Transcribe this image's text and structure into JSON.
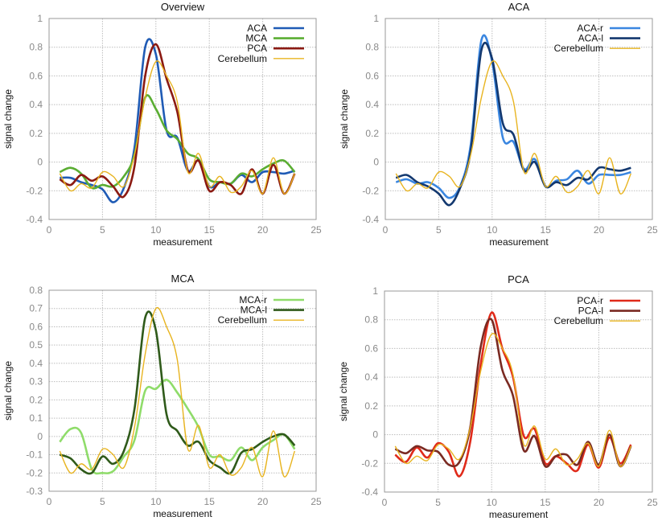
{
  "chart_data": [
    {
      "type": "line",
      "title": "Overview",
      "xlabel": "measurement",
      "ylabel": "signal change",
      "xlim": [
        0,
        25
      ],
      "ylim": [
        -0.4,
        1
      ],
      "xticks": [
        0,
        5,
        10,
        15,
        20,
        25
      ],
      "yticks": [
        "-0.4",
        "-0.2",
        "0",
        "0.2",
        "0.4",
        "0.6",
        "0.8",
        "1"
      ],
      "grid": true,
      "legend": "top-right",
      "x": [
        1,
        2,
        3,
        4,
        5,
        6,
        7,
        8,
        9,
        10,
        11,
        12,
        13,
        14,
        15,
        16,
        17,
        18,
        19,
        20,
        21,
        22,
        23
      ],
      "series": [
        {
          "name": "ACA",
          "color": "#1f5bb5",
          "values": [
            -0.11,
            -0.11,
            -0.14,
            -0.16,
            -0.19,
            -0.28,
            -0.18,
            0.1,
            0.8,
            0.75,
            0.22,
            0.17,
            -0.06,
            0.01,
            -0.17,
            -0.14,
            -0.15,
            -0.09,
            -0.14,
            -0.07,
            -0.07,
            -0.08,
            -0.06
          ]
        },
        {
          "name": "MCA",
          "color": "#5aad32",
          "values": [
            -0.07,
            -0.04,
            -0.08,
            -0.18,
            -0.16,
            -0.17,
            -0.1,
            0.05,
            0.45,
            0.37,
            0.22,
            0.16,
            0.06,
            0.02,
            -0.12,
            -0.14,
            -0.15,
            -0.08,
            -0.1,
            -0.05,
            -0.01,
            0.01,
            -0.07
          ]
        },
        {
          "name": "PCA",
          "color": "#8b1a12",
          "values": [
            -0.12,
            -0.16,
            -0.09,
            -0.13,
            -0.1,
            -0.17,
            -0.24,
            -0.03,
            0.6,
            0.82,
            0.58,
            0.35,
            -0.06,
            0.01,
            -0.2,
            -0.14,
            -0.16,
            -0.22,
            -0.05,
            -0.22,
            -0.02,
            -0.22,
            -0.08
          ]
        },
        {
          "name": "Cerebellum",
          "color": "#e8b420",
          "values": [
            -0.08,
            -0.2,
            -0.15,
            -0.18,
            -0.07,
            -0.1,
            -0.17,
            0.05,
            0.45,
            0.7,
            0.6,
            0.42,
            -0.07,
            0.06,
            -0.17,
            -0.1,
            -0.21,
            -0.17,
            -0.06,
            -0.22,
            0.03,
            -0.22,
            -0.08
          ]
        }
      ]
    },
    {
      "type": "line",
      "title": "ACA",
      "xlabel": "measurement",
      "ylabel": "signal change",
      "xlim": [
        0,
        25
      ],
      "ylim": [
        -0.4,
        1
      ],
      "xticks": [
        0,
        5,
        10,
        15,
        20,
        25
      ],
      "yticks": [
        "-0.4",
        "-0.2",
        "0",
        "0.2",
        "0.4",
        "0.6",
        "0.8",
        "1"
      ],
      "grid": true,
      "legend": "top-right",
      "x": [
        1,
        2,
        3,
        4,
        5,
        6,
        7,
        8,
        9,
        10,
        11,
        12,
        13,
        14,
        15,
        16,
        17,
        18,
        19,
        20,
        21,
        22,
        23
      ],
      "series": [
        {
          "name": "ACA-r",
          "color": "#3a86e0",
          "values": [
            -0.14,
            -0.12,
            -0.15,
            -0.14,
            -0.18,
            -0.25,
            -0.17,
            0.12,
            0.85,
            0.7,
            0.17,
            0.14,
            -0.05,
            0.02,
            -0.17,
            -0.13,
            -0.12,
            -0.06,
            -0.15,
            -0.09,
            -0.09,
            -0.09,
            -0.07
          ]
        },
        {
          "name": "ACA-l",
          "color": "#13386f",
          "values": [
            -0.11,
            -0.09,
            -0.14,
            -0.17,
            -0.22,
            -0.3,
            -0.18,
            0.08,
            0.78,
            0.72,
            0.27,
            0.19,
            -0.06,
            0.0,
            -0.17,
            -0.14,
            -0.16,
            -0.11,
            -0.12,
            -0.04,
            -0.05,
            -0.06,
            -0.04
          ]
        },
        {
          "name": "Cerebellum",
          "color": "#e8b420",
          "values": [
            -0.08,
            -0.2,
            -0.15,
            -0.18,
            -0.07,
            -0.1,
            -0.17,
            0.05,
            0.45,
            0.7,
            0.6,
            0.42,
            -0.07,
            0.06,
            -0.17,
            -0.1,
            -0.21,
            -0.17,
            -0.06,
            -0.22,
            0.03,
            -0.22,
            -0.08
          ]
        }
      ]
    },
    {
      "type": "line",
      "title": "MCA",
      "xlabel": "measurement",
      "ylabel": "signal change",
      "xlim": [
        0,
        25
      ],
      "ylim": [
        -0.3,
        0.8
      ],
      "xticks": [
        0,
        5,
        10,
        15,
        20,
        25
      ],
      "yticks": [
        "-0.3",
        "-0.2",
        "-0.1",
        "0",
        "0.1",
        "0.2",
        "0.3",
        "0.4",
        "0.5",
        "0.6",
        "0.7",
        "0.8"
      ],
      "grid": true,
      "legend": "top-right",
      "x": [
        1,
        2,
        3,
        4,
        5,
        6,
        7,
        8,
        9,
        10,
        11,
        12,
        13,
        14,
        15,
        16,
        17,
        18,
        19,
        20,
        21,
        22,
        23
      ],
      "series": [
        {
          "name": "MCA-r",
          "color": "#8fdc6a",
          "values": [
            -0.03,
            0.04,
            0.02,
            -0.18,
            -0.2,
            -0.19,
            -0.11,
            -0.02,
            0.25,
            0.26,
            0.31,
            0.24,
            0.15,
            0.05,
            -0.1,
            -0.11,
            -0.13,
            -0.06,
            -0.13,
            -0.06,
            -0.02,
            0.01,
            -0.07
          ]
        },
        {
          "name": "MCA-l",
          "color": "#2f5a1a",
          "values": [
            -0.1,
            -0.12,
            -0.18,
            -0.2,
            -0.11,
            -0.15,
            -0.08,
            0.15,
            0.65,
            0.58,
            0.12,
            0.03,
            -0.05,
            -0.03,
            -0.13,
            -0.17,
            -0.2,
            -0.09,
            -0.07,
            -0.03,
            0.0,
            0.01,
            -0.05
          ]
        },
        {
          "name": "Cerebellum",
          "color": "#e8b420",
          "values": [
            -0.08,
            -0.2,
            -0.15,
            -0.18,
            -0.07,
            -0.1,
            -0.17,
            0.05,
            0.45,
            0.7,
            0.6,
            0.42,
            -0.07,
            0.06,
            -0.17,
            -0.1,
            -0.21,
            -0.17,
            -0.06,
            -0.22,
            0.03,
            -0.22,
            -0.08
          ]
        }
      ]
    },
    {
      "type": "line",
      "title": "PCA",
      "xlabel": "measurement",
      "ylabel": "signal change",
      "xlim": [
        0,
        25
      ],
      "ylim": [
        -0.4,
        1
      ],
      "xticks": [
        0,
        5,
        10,
        15,
        20,
        25
      ],
      "yticks": [
        "-0.4",
        "-0.2",
        "0",
        "0.2",
        "0.4",
        "0.6",
        "0.8",
        "1"
      ],
      "grid": true,
      "legend": "top-right",
      "x": [
        1,
        2,
        3,
        4,
        5,
        6,
        7,
        8,
        9,
        10,
        11,
        12,
        13,
        14,
        15,
        16,
        17,
        18,
        19,
        20,
        21,
        22,
        23
      ],
      "series": [
        {
          "name": "PCA-r",
          "color": "#e02a1a",
          "values": [
            -0.14,
            -0.19,
            -0.09,
            -0.16,
            -0.06,
            -0.12,
            -0.29,
            -0.05,
            0.5,
            0.85,
            0.6,
            0.4,
            -0.01,
            0.04,
            -0.2,
            -0.15,
            -0.2,
            -0.25,
            -0.07,
            -0.23,
            -0.02,
            -0.2,
            -0.07
          ]
        },
        {
          "name": "PCA-l",
          "color": "#7a2a22",
          "values": [
            -0.1,
            -0.13,
            -0.08,
            -0.11,
            -0.12,
            -0.21,
            -0.19,
            0.05,
            0.62,
            0.8,
            0.45,
            0.27,
            -0.11,
            -0.01,
            -0.22,
            -0.15,
            -0.14,
            -0.21,
            -0.05,
            -0.21,
            0.0,
            -0.22,
            -0.08
          ]
        },
        {
          "name": "Cerebellum",
          "color": "#e8b420",
          "values": [
            -0.08,
            -0.2,
            -0.15,
            -0.18,
            -0.07,
            -0.1,
            -0.17,
            0.05,
            0.45,
            0.7,
            0.6,
            0.42,
            -0.07,
            0.06,
            -0.17,
            -0.1,
            -0.21,
            -0.17,
            -0.06,
            -0.22,
            0.03,
            -0.22,
            -0.08
          ]
        }
      ]
    }
  ]
}
